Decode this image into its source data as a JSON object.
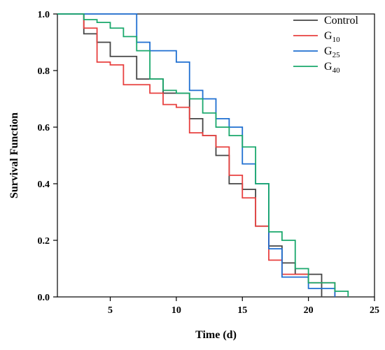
{
  "chart_data": {
    "type": "line",
    "step": true,
    "xlabel": "Time (d)",
    "ylabel": "Survival Function",
    "xlim": [
      1,
      25
    ],
    "ylim": [
      0,
      1.0
    ],
    "x_ticks": [
      5,
      10,
      15,
      20,
      25
    ],
    "x_tick_labels": [
      "5",
      "10",
      "15",
      "20",
      "25"
    ],
    "y_ticks": [
      0,
      0.2,
      0.4,
      0.6,
      0.8,
      1.0
    ],
    "y_tick_labels": [
      "0.0",
      "0.2",
      "0.4",
      "0.6",
      "0.8",
      "1.0"
    ],
    "grid": false,
    "legend_position": "top-right",
    "series": [
      {
        "name": "Control",
        "label_main": "Control",
        "label_sub": "",
        "color": "#444444",
        "points": [
          [
            1,
            1.0
          ],
          [
            3,
            0.93
          ],
          [
            4,
            0.9
          ],
          [
            5,
            0.85
          ],
          [
            7,
            0.77
          ],
          [
            9,
            0.72
          ],
          [
            11,
            0.63
          ],
          [
            12,
            0.57
          ],
          [
            13,
            0.5
          ],
          [
            14,
            0.4
          ],
          [
            15,
            0.38
          ],
          [
            16,
            0.25
          ],
          [
            17,
            0.18
          ],
          [
            18,
            0.12
          ],
          [
            19,
            0.08
          ],
          [
            21,
            0.0
          ]
        ]
      },
      {
        "name": "G10",
        "label_main": "G",
        "label_sub": "10",
        "color": "#e8403f",
        "points": [
          [
            1,
            1.0
          ],
          [
            3,
            0.95
          ],
          [
            4,
            0.83
          ],
          [
            5,
            0.82
          ],
          [
            6,
            0.75
          ],
          [
            8,
            0.72
          ],
          [
            9,
            0.68
          ],
          [
            10,
            0.67
          ],
          [
            11,
            0.58
          ],
          [
            12,
            0.57
          ],
          [
            13,
            0.53
          ],
          [
            14,
            0.43
          ],
          [
            15,
            0.35
          ],
          [
            16,
            0.25
          ],
          [
            17,
            0.13
          ],
          [
            18,
            0.08
          ],
          [
            19,
            0.08
          ],
          [
            20,
            0.05
          ],
          [
            22,
            0.0
          ]
        ]
      },
      {
        "name": "G25",
        "label_main": "G",
        "label_sub": "25",
        "color": "#1f6fd1",
        "points": [
          [
            1,
            1.0
          ],
          [
            7,
            0.9
          ],
          [
            8,
            0.87
          ],
          [
            10,
            0.83
          ],
          [
            11,
            0.73
          ],
          [
            12,
            0.7
          ],
          [
            13,
            0.63
          ],
          [
            14,
            0.6
          ],
          [
            15,
            0.47
          ],
          [
            16,
            0.4
          ],
          [
            17,
            0.17
          ],
          [
            18,
            0.07
          ],
          [
            20,
            0.03
          ],
          [
            22,
            0.0
          ]
        ]
      },
      {
        "name": "G40",
        "label_main": "G",
        "label_sub": "40",
        "color": "#1aa86c",
        "points": [
          [
            1,
            1.0
          ],
          [
            3,
            0.98
          ],
          [
            4,
            0.97
          ],
          [
            5,
            0.95
          ],
          [
            6,
            0.92
          ],
          [
            7,
            0.87
          ],
          [
            8,
            0.77
          ],
          [
            9,
            0.73
          ],
          [
            10,
            0.72
          ],
          [
            11,
            0.7
          ],
          [
            12,
            0.65
          ],
          [
            13,
            0.6
          ],
          [
            14,
            0.57
          ],
          [
            15,
            0.53
          ],
          [
            16,
            0.4
          ],
          [
            17,
            0.23
          ],
          [
            18,
            0.2
          ],
          [
            19,
            0.1
          ],
          [
            20,
            0.05
          ],
          [
            22,
            0.02
          ],
          [
            23,
            0.0
          ]
        ]
      }
    ]
  }
}
